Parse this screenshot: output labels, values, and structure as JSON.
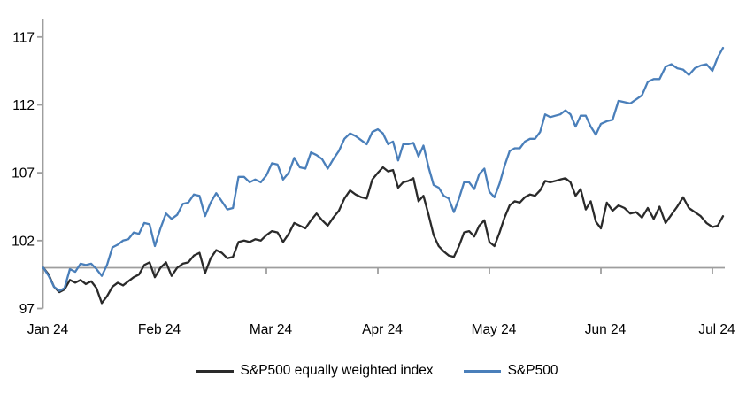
{
  "chart_data": {
    "type": "line",
    "title": "",
    "grid": false,
    "legend_position": "bottom-center",
    "axis_color": "#9e9e9e",
    "label_color": "#000000",
    "background": "#ffffff",
    "x_axis": {
      "tick_labels": [
        "Jan 24",
        "Feb 24",
        "Mar 24",
        "Apr 24",
        "May 24",
        "Jun 24",
        "Jul 24"
      ],
      "baseline_value": 100,
      "note": "axis line drawn at index value 100 with month tick marks, labels placed low"
    },
    "y_axis": {
      "ticks": [
        97,
        102,
        107,
        112,
        117
      ],
      "min": 97,
      "max": 118.3
    },
    "t_months": [
      0,
      0.048,
      0.095,
      0.143,
      0.19,
      0.238,
      0.286,
      0.333,
      0.381,
      0.429,
      0.476,
      0.524,
      0.571,
      0.619,
      0.667,
      0.714,
      0.762,
      0.81,
      0.857,
      0.905,
      0.952,
      1,
      1.05,
      1.1,
      1.15,
      1.2,
      1.25,
      1.3,
      1.35,
      1.4,
      1.45,
      1.5,
      1.55,
      1.6,
      1.65,
      1.7,
      1.75,
      1.8,
      1.85,
      1.9,
      1.95,
      2,
      2.05,
      2.1,
      2.15,
      2.2,
      2.25,
      2.3,
      2.35,
      2.4,
      2.45,
      2.5,
      2.55,
      2.6,
      2.65,
      2.7,
      2.75,
      2.8,
      2.85,
      2.9,
      2.95,
      3,
      3.045,
      3.091,
      3.136,
      3.182,
      3.227,
      3.273,
      3.318,
      3.364,
      3.409,
      3.455,
      3.5,
      3.545,
      3.591,
      3.636,
      3.682,
      3.727,
      3.773,
      3.818,
      3.864,
      3.909,
      3.955,
      4,
      4.045,
      4.091,
      4.136,
      4.182,
      4.227,
      4.273,
      4.318,
      4.364,
      4.409,
      4.455,
      4.5,
      4.545,
      4.591,
      4.636,
      4.682,
      4.727,
      4.773,
      4.818,
      4.864,
      4.909,
      4.955,
      5,
      5.053,
      5.105,
      5.158,
      5.211,
      5.263,
      5.316,
      5.368,
      5.421,
      5.474,
      5.526,
      5.579,
      5.632,
      5.684,
      5.737,
      5.789,
      5.842,
      5.895,
      5.947,
      6,
      6.048,
      6.095
    ],
    "series": [
      {
        "name": "S&P500 equally weighted index",
        "color": "#2a2a2a",
        "values": [
          100,
          99.5,
          98.6,
          98.2,
          98.4,
          99.1,
          98.9,
          99.1,
          98.8,
          99,
          98.5,
          97.4,
          97.9,
          98.6,
          98.9,
          98.7,
          99,
          99.3,
          99.5,
          100.2,
          100.4,
          99.3,
          100,
          100.4,
          99.4,
          100,
          100.3,
          100.4,
          100.9,
          101.1,
          99.6,
          100.7,
          101.3,
          101.1,
          100.7,
          100.8,
          101.9,
          102,
          101.9,
          102.1,
          102,
          102.4,
          102.7,
          102.6,
          101.9,
          102.5,
          103.3,
          103.1,
          102.9,
          103.5,
          104,
          103.5,
          103.1,
          103.7,
          104.2,
          105.1,
          105.7,
          105.4,
          105.2,
          105.1,
          106.5,
          107,
          107.4,
          107.1,
          107.2,
          105.9,
          106.3,
          106.4,
          106.6,
          104.9,
          105.3,
          103.9,
          102.4,
          101.6,
          101.2,
          100.9,
          100.8,
          101.6,
          102.6,
          102.7,
          102.3,
          103.1,
          103.5,
          101.9,
          101.6,
          102.6,
          103.7,
          104.6,
          104.9,
          104.8,
          105.2,
          105.4,
          105.3,
          105.7,
          106.4,
          106.3,
          106.4,
          106.5,
          106.6,
          106.3,
          105.3,
          105.8,
          104.3,
          104.9,
          103.4,
          102.9,
          104.8,
          104.2,
          104.6,
          104.4,
          104,
          104.1,
          103.7,
          104.4,
          103.6,
          104.5,
          103.3,
          103.9,
          104.5,
          105.2,
          104.4,
          104.1,
          103.8,
          103.3,
          103,
          103.1,
          103.8
        ]
      },
      {
        "name": "S&P500",
        "color": "#4a7fba",
        "values": [
          100,
          99.4,
          98.6,
          98.3,
          98.5,
          99.9,
          99.7,
          100.3,
          100.2,
          100.3,
          99.9,
          99.4,
          100.2,
          101.5,
          101.7,
          102,
          102.1,
          102.6,
          102.5,
          103.3,
          103.2,
          101.6,
          102.9,
          104,
          103.6,
          103.9,
          104.7,
          104.8,
          105.4,
          105.3,
          103.8,
          104.8,
          105.5,
          104.9,
          104.3,
          104.4,
          106.7,
          106.7,
          106.3,
          106.5,
          106.3,
          106.8,
          107.7,
          107.6,
          106.5,
          107,
          108.1,
          107.4,
          107.3,
          108.5,
          108.3,
          108,
          107.3,
          108,
          108.6,
          109.5,
          109.9,
          109.7,
          109.4,
          109.1,
          110,
          110.2,
          109.9,
          109.1,
          109.3,
          107.9,
          109.1,
          109.1,
          109.2,
          108.2,
          109,
          107.4,
          106.1,
          105.9,
          105.3,
          105.1,
          104.1,
          105.1,
          106.3,
          106.3,
          105.8,
          106.9,
          107.3,
          105.6,
          105.2,
          106.2,
          107.5,
          108.6,
          108.8,
          108.8,
          109.3,
          109.5,
          109.5,
          110,
          111.3,
          111.1,
          111.2,
          111.3,
          111.6,
          111.3,
          110.4,
          111.2,
          111.2,
          110.4,
          109.8,
          110.6,
          110.8,
          110.9,
          112.3,
          112.2,
          112.1,
          112.4,
          112.7,
          113.7,
          113.9,
          113.9,
          114.8,
          115,
          114.7,
          114.6,
          114.2,
          114.7,
          114.9,
          115,
          114.5,
          115.5,
          116.2
        ]
      }
    ]
  }
}
